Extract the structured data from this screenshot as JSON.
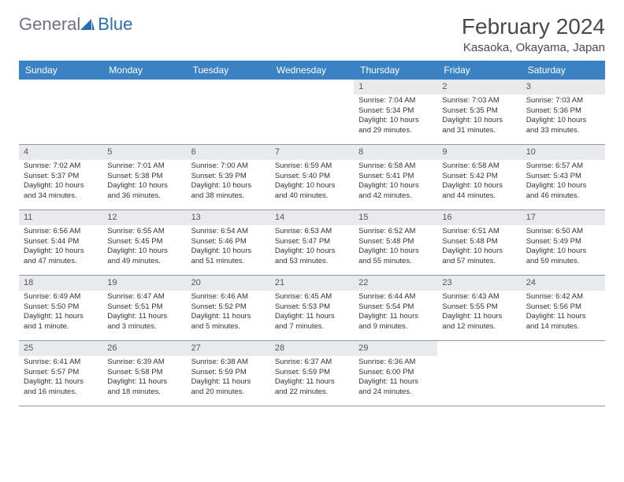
{
  "logo": {
    "text1": "General",
    "text2": "Blue"
  },
  "header": {
    "month_title": "February 2024",
    "location": "Kasaoka, Okayama, Japan"
  },
  "colors": {
    "header_bg": "#3b82c4",
    "header_text": "#ffffff",
    "daynum_bg": "#e8eaed",
    "border": "#8a9bb0",
    "logo_gray": "#6b7280",
    "logo_blue": "#2c6fb0"
  },
  "day_names": [
    "Sunday",
    "Monday",
    "Tuesday",
    "Wednesday",
    "Thursday",
    "Friday",
    "Saturday"
  ],
  "weeks": [
    [
      {
        "n": "",
        "sunrise": "",
        "sunset": "",
        "daylight": ""
      },
      {
        "n": "",
        "sunrise": "",
        "sunset": "",
        "daylight": ""
      },
      {
        "n": "",
        "sunrise": "",
        "sunset": "",
        "daylight": ""
      },
      {
        "n": "",
        "sunrise": "",
        "sunset": "",
        "daylight": ""
      },
      {
        "n": "1",
        "sunrise": "Sunrise: 7:04 AM",
        "sunset": "Sunset: 5:34 PM",
        "daylight": "Daylight: 10 hours and 29 minutes."
      },
      {
        "n": "2",
        "sunrise": "Sunrise: 7:03 AM",
        "sunset": "Sunset: 5:35 PM",
        "daylight": "Daylight: 10 hours and 31 minutes."
      },
      {
        "n": "3",
        "sunrise": "Sunrise: 7:03 AM",
        "sunset": "Sunset: 5:36 PM",
        "daylight": "Daylight: 10 hours and 33 minutes."
      }
    ],
    [
      {
        "n": "4",
        "sunrise": "Sunrise: 7:02 AM",
        "sunset": "Sunset: 5:37 PM",
        "daylight": "Daylight: 10 hours and 34 minutes."
      },
      {
        "n": "5",
        "sunrise": "Sunrise: 7:01 AM",
        "sunset": "Sunset: 5:38 PM",
        "daylight": "Daylight: 10 hours and 36 minutes."
      },
      {
        "n": "6",
        "sunrise": "Sunrise: 7:00 AM",
        "sunset": "Sunset: 5:39 PM",
        "daylight": "Daylight: 10 hours and 38 minutes."
      },
      {
        "n": "7",
        "sunrise": "Sunrise: 6:59 AM",
        "sunset": "Sunset: 5:40 PM",
        "daylight": "Daylight: 10 hours and 40 minutes."
      },
      {
        "n": "8",
        "sunrise": "Sunrise: 6:58 AM",
        "sunset": "Sunset: 5:41 PM",
        "daylight": "Daylight: 10 hours and 42 minutes."
      },
      {
        "n": "9",
        "sunrise": "Sunrise: 6:58 AM",
        "sunset": "Sunset: 5:42 PM",
        "daylight": "Daylight: 10 hours and 44 minutes."
      },
      {
        "n": "10",
        "sunrise": "Sunrise: 6:57 AM",
        "sunset": "Sunset: 5:43 PM",
        "daylight": "Daylight: 10 hours and 46 minutes."
      }
    ],
    [
      {
        "n": "11",
        "sunrise": "Sunrise: 6:56 AM",
        "sunset": "Sunset: 5:44 PM",
        "daylight": "Daylight: 10 hours and 47 minutes."
      },
      {
        "n": "12",
        "sunrise": "Sunrise: 6:55 AM",
        "sunset": "Sunset: 5:45 PM",
        "daylight": "Daylight: 10 hours and 49 minutes."
      },
      {
        "n": "13",
        "sunrise": "Sunrise: 6:54 AM",
        "sunset": "Sunset: 5:46 PM",
        "daylight": "Daylight: 10 hours and 51 minutes."
      },
      {
        "n": "14",
        "sunrise": "Sunrise: 6:53 AM",
        "sunset": "Sunset: 5:47 PM",
        "daylight": "Daylight: 10 hours and 53 minutes."
      },
      {
        "n": "15",
        "sunrise": "Sunrise: 6:52 AM",
        "sunset": "Sunset: 5:48 PM",
        "daylight": "Daylight: 10 hours and 55 minutes."
      },
      {
        "n": "16",
        "sunrise": "Sunrise: 6:51 AM",
        "sunset": "Sunset: 5:48 PM",
        "daylight": "Daylight: 10 hours and 57 minutes."
      },
      {
        "n": "17",
        "sunrise": "Sunrise: 6:50 AM",
        "sunset": "Sunset: 5:49 PM",
        "daylight": "Daylight: 10 hours and 59 minutes."
      }
    ],
    [
      {
        "n": "18",
        "sunrise": "Sunrise: 6:49 AM",
        "sunset": "Sunset: 5:50 PM",
        "daylight": "Daylight: 11 hours and 1 minute."
      },
      {
        "n": "19",
        "sunrise": "Sunrise: 6:47 AM",
        "sunset": "Sunset: 5:51 PM",
        "daylight": "Daylight: 11 hours and 3 minutes."
      },
      {
        "n": "20",
        "sunrise": "Sunrise: 6:46 AM",
        "sunset": "Sunset: 5:52 PM",
        "daylight": "Daylight: 11 hours and 5 minutes."
      },
      {
        "n": "21",
        "sunrise": "Sunrise: 6:45 AM",
        "sunset": "Sunset: 5:53 PM",
        "daylight": "Daylight: 11 hours and 7 minutes."
      },
      {
        "n": "22",
        "sunrise": "Sunrise: 6:44 AM",
        "sunset": "Sunset: 5:54 PM",
        "daylight": "Daylight: 11 hours and 9 minutes."
      },
      {
        "n": "23",
        "sunrise": "Sunrise: 6:43 AM",
        "sunset": "Sunset: 5:55 PM",
        "daylight": "Daylight: 11 hours and 12 minutes."
      },
      {
        "n": "24",
        "sunrise": "Sunrise: 6:42 AM",
        "sunset": "Sunset: 5:56 PM",
        "daylight": "Daylight: 11 hours and 14 minutes."
      }
    ],
    [
      {
        "n": "25",
        "sunrise": "Sunrise: 6:41 AM",
        "sunset": "Sunset: 5:57 PM",
        "daylight": "Daylight: 11 hours and 16 minutes."
      },
      {
        "n": "26",
        "sunrise": "Sunrise: 6:39 AM",
        "sunset": "Sunset: 5:58 PM",
        "daylight": "Daylight: 11 hours and 18 minutes."
      },
      {
        "n": "27",
        "sunrise": "Sunrise: 6:38 AM",
        "sunset": "Sunset: 5:59 PM",
        "daylight": "Daylight: 11 hours and 20 minutes."
      },
      {
        "n": "28",
        "sunrise": "Sunrise: 6:37 AM",
        "sunset": "Sunset: 5:59 PM",
        "daylight": "Daylight: 11 hours and 22 minutes."
      },
      {
        "n": "29",
        "sunrise": "Sunrise: 6:36 AM",
        "sunset": "Sunset: 6:00 PM",
        "daylight": "Daylight: 11 hours and 24 minutes."
      },
      {
        "n": "",
        "sunrise": "",
        "sunset": "",
        "daylight": ""
      },
      {
        "n": "",
        "sunrise": "",
        "sunset": "",
        "daylight": ""
      }
    ]
  ]
}
